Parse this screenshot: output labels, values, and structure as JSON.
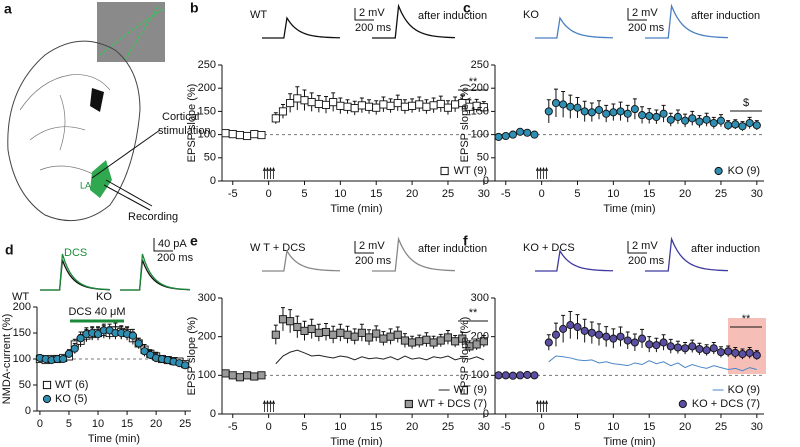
{
  "diagram": {
    "label": "a",
    "stimulation": [
      "Cortical",
      "stimulation"
    ],
    "region": "LA",
    "recording": "Recording"
  },
  "chart_data": [
    {
      "type": "scatter",
      "panel_label": "b",
      "x_label": "Time (min)",
      "y_label": "EPSP slope (%)",
      "xlim": [
        -6.5,
        31
      ],
      "xticks": [
        -5,
        0,
        5,
        10,
        15,
        20,
        25,
        30
      ],
      "ylim": [
        0,
        250
      ],
      "yticks": [
        0,
        50,
        100,
        150,
        200,
        250
      ],
      "hline": 100,
      "legend": "lower right",
      "annotation": "**",
      "inset": {
        "trace_color": "#111111",
        "label": "WT",
        "scale_y": "2 mV",
        "scale_x": "200 ms",
        "note": "after induction"
      },
      "series": [
        {
          "name": "WT (9)",
          "marker": "square",
          "color": "#ffffff",
          "x": [
            -6,
            -5,
            -4,
            -3,
            -2,
            -1,
            1,
            2,
            3,
            4,
            5,
            6,
            7,
            8,
            9,
            10,
            11,
            12,
            13,
            14,
            15,
            16,
            17,
            18,
            19,
            20,
            21,
            22,
            23,
            24,
            25,
            26,
            27,
            28,
            29,
            30
          ],
          "values": [
            103,
            101,
            99,
            97,
            101,
            99,
            135,
            150,
            168,
            178,
            174,
            170,
            166,
            164,
            170,
            162,
            160,
            157,
            163,
            160,
            158,
            165,
            162,
            168,
            160,
            162,
            165,
            160,
            163,
            166,
            158,
            165,
            168,
            160,
            162,
            159
          ],
          "errors": [
            5,
            5,
            5,
            5,
            5,
            5,
            12,
            15,
            20,
            25,
            22,
            20,
            18,
            18,
            20,
            17,
            15,
            15,
            16,
            15,
            15,
            16,
            15,
            17,
            15,
            15,
            16,
            15,
            16,
            17,
            15,
            16,
            17,
            15,
            14,
            12
          ]
        }
      ]
    },
    {
      "type": "scatter",
      "panel_label": "c",
      "x_label": "Time (min)",
      "y_label": "EPSP slope (%)",
      "xlim": [
        -6.5,
        31
      ],
      "xticks": [
        -5,
        0,
        5,
        10,
        15,
        20,
        25,
        30
      ],
      "ylim": [
        0,
        250
      ],
      "yticks": [
        0,
        50,
        100,
        150,
        200,
        250
      ],
      "hline": 100,
      "legend": "lower right",
      "annotation": "$",
      "inset": {
        "trace_color": "#4a7fc1",
        "label": "KO",
        "scale_y": "2 mV",
        "scale_x": "200 ms",
        "note": "after induction"
      },
      "series": [
        {
          "name": "KO (9)",
          "marker": "circle",
          "color": "#2f8fb3",
          "x": [
            -6,
            -5,
            -4,
            -3,
            -2,
            -1,
            1,
            2,
            3,
            4,
            5,
            6,
            7,
            8,
            9,
            10,
            11,
            12,
            13,
            14,
            15,
            16,
            17,
            18,
            19,
            20,
            21,
            22,
            23,
            24,
            25,
            26,
            27,
            28,
            29,
            30
          ],
          "values": [
            95,
            97,
            100,
            106,
            104,
            100,
            150,
            168,
            165,
            160,
            158,
            150,
            148,
            153,
            145,
            148,
            150,
            145,
            155,
            142,
            140,
            138,
            145,
            132,
            138,
            130,
            135,
            128,
            132,
            125,
            130,
            120,
            122,
            118,
            125,
            120
          ],
          "errors": [
            4,
            4,
            4,
            4,
            4,
            4,
            25,
            30,
            28,
            25,
            22,
            22,
            20,
            20,
            18,
            18,
            20,
            18,
            22,
            18,
            16,
            15,
            18,
            14,
            15,
            14,
            15,
            13,
            14,
            12,
            13,
            10,
            10,
            10,
            12,
            10
          ]
        }
      ]
    },
    {
      "type": "scatter",
      "panel_label": "d",
      "x_label": "Time (min)",
      "y_label": "NMDA-current (%)",
      "xlim": [
        -0.5,
        26
      ],
      "xticks": [
        0,
        5,
        10,
        15,
        20,
        25
      ],
      "ylim": [
        0,
        200
      ],
      "yticks": [
        0,
        50,
        100,
        150,
        200
      ],
      "hline": 100,
      "legend": "lower left",
      "drug_bar": "DCS 40 μM",
      "inset": {
        "trace_colors": [
          "#1a8a3a",
          "#111111"
        ],
        "labels": [
          "WT",
          "KO"
        ],
        "drug": "DCS",
        "scale_y": "40 pA",
        "scale_x": "200 ms"
      },
      "series": [
        {
          "name": "WT (6)",
          "marker": "square",
          "color": "#ffffff",
          "x": [
            0,
            1,
            2,
            3,
            4,
            5,
            6,
            7,
            8,
            9,
            10,
            11,
            12,
            13,
            14,
            15,
            16,
            17,
            18,
            19,
            20,
            21,
            22,
            23,
            24,
            25
          ],
          "values": [
            100,
            98,
            100,
            100,
            102,
            105,
            128,
            135,
            145,
            148,
            150,
            152,
            150,
            155,
            152,
            150,
            140,
            130,
            118,
            110,
            105,
            100,
            98,
            96,
            95,
            90
          ],
          "errors": [
            6,
            6,
            6,
            6,
            6,
            8,
            10,
            12,
            12,
            12,
            12,
            12,
            12,
            14,
            12,
            12,
            12,
            10,
            10,
            8,
            8,
            6,
            6,
            6,
            6,
            6
          ]
        },
        {
          "name": "KO (5)",
          "marker": "circle",
          "color": "#2f8fb3",
          "x": [
            0,
            1,
            2,
            3,
            4,
            5,
            6,
            7,
            8,
            9,
            10,
            11,
            12,
            13,
            14,
            15,
            16,
            17,
            18,
            19,
            20,
            21,
            22,
            23,
            24,
            25
          ],
          "values": [
            102,
            100,
            98,
            100,
            100,
            110,
            120,
            140,
            148,
            150,
            148,
            155,
            155,
            150,
            150,
            148,
            145,
            130,
            115,
            108,
            102,
            100,
            98,
            95,
            92,
            88
          ],
          "errors": [
            6,
            6,
            6,
            6,
            6,
            8,
            10,
            12,
            12,
            12,
            12,
            12,
            12,
            12,
            12,
            12,
            12,
            10,
            10,
            8,
            8,
            6,
            6,
            6,
            6,
            6
          ]
        }
      ]
    },
    {
      "type": "scatter",
      "panel_label": "e",
      "x_label": "Time (min)",
      "y_label": "EPSP slope (%)",
      "xlim": [
        -6.5,
        31
      ],
      "xticks": [
        -5,
        0,
        5,
        10,
        15,
        20,
        25,
        30
      ],
      "ylim": [
        0,
        300
      ],
      "yticks": [
        0,
        100,
        200,
        300
      ],
      "hline": 100,
      "legend": "lower right",
      "annotation": "**",
      "inset": {
        "trace_color": "#888888",
        "label": "W T + DCS",
        "scale_y": "2 mV",
        "scale_x": "200 ms",
        "note": "after induction"
      },
      "series": [
        {
          "name": "WT (9)",
          "marker": "line",
          "color": "#222222",
          "x": [
            1,
            2,
            3,
            4,
            5,
            6,
            7,
            8,
            9,
            10,
            11,
            12,
            13,
            14,
            15,
            16,
            17,
            18,
            19,
            20,
            21,
            22,
            23,
            24,
            25,
            26,
            27,
            28,
            29,
            30
          ],
          "values": [
            130,
            150,
            160,
            165,
            158,
            150,
            152,
            148,
            145,
            150,
            147,
            140,
            148,
            143,
            145,
            142,
            148,
            140,
            150,
            142,
            145,
            140,
            148,
            145,
            150,
            140,
            145,
            142,
            148,
            140
          ]
        },
        {
          "name": "WT + DCS (7)",
          "marker": "square",
          "color": "#9a9a9a",
          "x": [
            -6,
            -5,
            -4,
            -3,
            -2,
            -1,
            1,
            2,
            3,
            4,
            5,
            6,
            7,
            8,
            9,
            10,
            11,
            12,
            13,
            14,
            15,
            16,
            17,
            18,
            19,
            20,
            21,
            22,
            23,
            24,
            25,
            26,
            27,
            28,
            29,
            30
          ],
          "values": [
            105,
            100,
            95,
            100,
            97,
            100,
            205,
            245,
            240,
            225,
            215,
            220,
            210,
            212,
            205,
            210,
            205,
            200,
            210,
            198,
            208,
            195,
            200,
            205,
            190,
            185,
            188,
            192,
            185,
            190,
            198,
            188,
            195,
            175,
            180,
            188
          ],
          "errors": [
            8,
            8,
            8,
            8,
            8,
            8,
            25,
            30,
            30,
            28,
            25,
            25,
            22,
            22,
            22,
            22,
            22,
            20,
            22,
            20,
            20,
            18,
            20,
            20,
            18,
            16,
            16,
            18,
            16,
            16,
            18,
            15,
            16,
            14,
            14,
            15
          ]
        }
      ]
    },
    {
      "type": "scatter",
      "panel_label": "f",
      "x_label": "Time (min)",
      "y_label": "EPSP slope (%)",
      "xlim": [
        -6.5,
        31
      ],
      "xticks": [
        -5,
        0,
        5,
        10,
        15,
        20,
        25,
        30
      ],
      "ylim": [
        0,
        300
      ],
      "yticks": [
        0,
        100,
        200,
        300
      ],
      "hline": 100,
      "legend": "lower right",
      "annotation": "**",
      "inset": {
        "trace_color": "#3f3aa0",
        "label": "KO + DCS",
        "scale_y": "2 mV",
        "scale_x": "200 ms",
        "note": "after induction"
      },
      "series": [
        {
          "name": "KO (9)",
          "marker": "line",
          "color": "#4a86c8",
          "x": [
            1,
            2,
            3,
            4,
            5,
            6,
            7,
            8,
            9,
            10,
            11,
            12,
            13,
            14,
            15,
            16,
            17,
            18,
            19,
            20,
            21,
            22,
            23,
            24,
            25,
            26,
            27,
            28,
            29,
            30
          ],
          "values": [
            135,
            150,
            148,
            145,
            140,
            138,
            140,
            132,
            135,
            130,
            128,
            125,
            132,
            128,
            138,
            130,
            135,
            125,
            132,
            120,
            128,
            122,
            118,
            125,
            120,
            115,
            118,
            112,
            120,
            115
          ]
        },
        {
          "name": "KO + DCS (7)",
          "marker": "circle",
          "color": "#5a4fa3",
          "x": [
            -6,
            -5,
            -4,
            -3,
            -2,
            -1,
            1,
            2,
            3,
            4,
            5,
            6,
            7,
            8,
            9,
            10,
            11,
            12,
            13,
            14,
            15,
            16,
            17,
            18,
            19,
            20,
            21,
            22,
            23,
            24,
            25,
            26,
            27,
            28,
            29,
            30
          ],
          "values": [
            100,
            100,
            99,
            100,
            101,
            100,
            185,
            205,
            220,
            230,
            225,
            215,
            210,
            205,
            200,
            195,
            200,
            190,
            185,
            195,
            180,
            178,
            185,
            175,
            172,
            170,
            175,
            168,
            165,
            170,
            160,
            162,
            158,
            155,
            158,
            152
          ],
          "errors": [
            3,
            3,
            3,
            3,
            3,
            3,
            20,
            30,
            35,
            35,
            32,
            30,
            28,
            28,
            26,
            25,
            25,
            22,
            22,
            24,
            20,
            18,
            20,
            18,
            16,
            15,
            16,
            15,
            14,
            15,
            14,
            14,
            14,
            13,
            14,
            12
          ]
        }
      ]
    }
  ]
}
